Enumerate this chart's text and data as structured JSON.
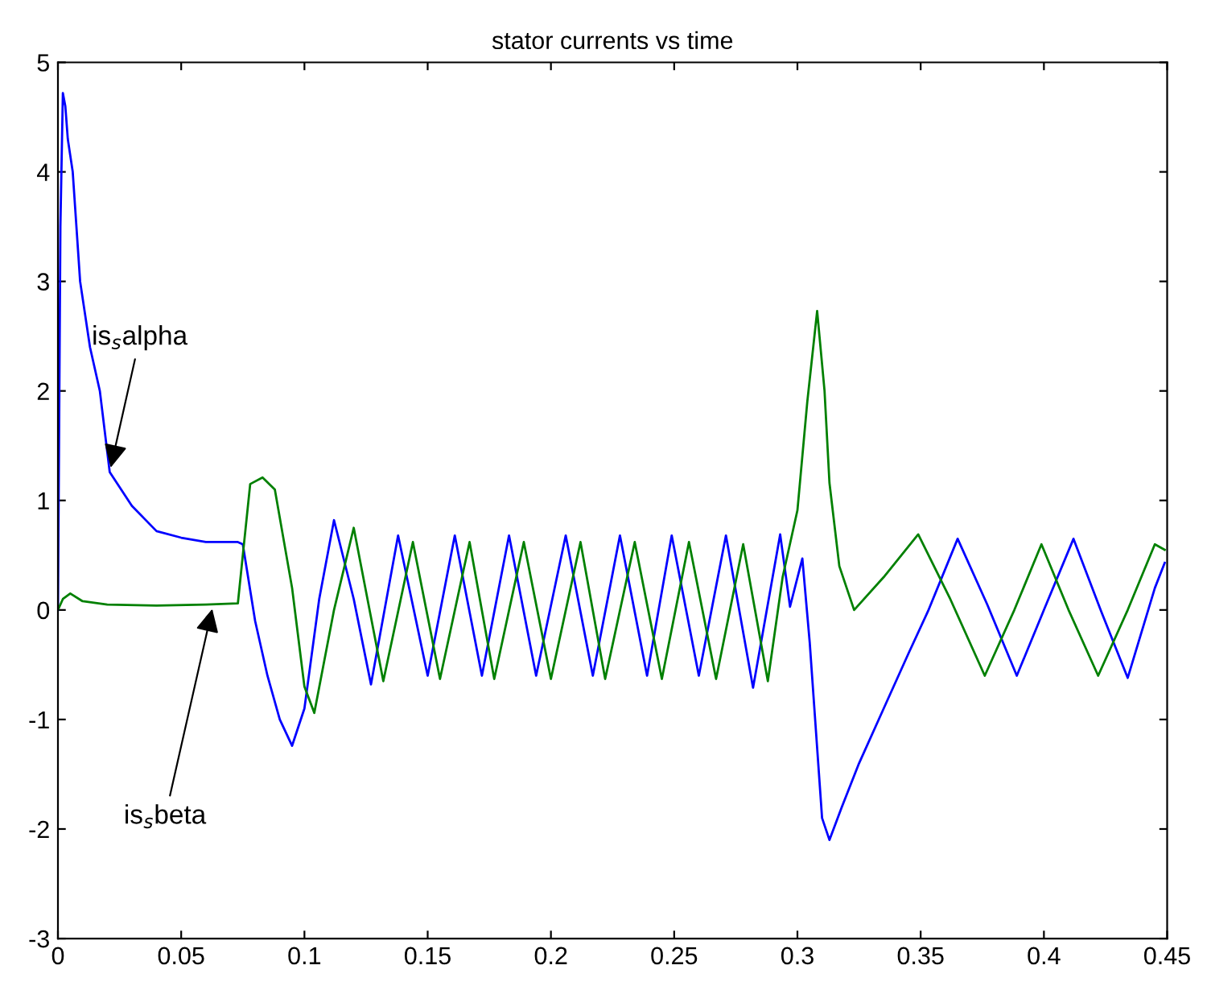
{
  "chart_data": {
    "type": "line",
    "title": "stator currents vs time",
    "xlim": [
      0,
      0.45
    ],
    "xticks": [
      0,
      0.05,
      0.1,
      0.15,
      0.2,
      0.25,
      0.3,
      0.35,
      0.4,
      0.45
    ],
    "ylim": [
      -3,
      5
    ],
    "yticks": [
      -3,
      -2,
      -1,
      0,
      1,
      2,
      3,
      4,
      5
    ],
    "grid": false,
    "series": [
      {
        "color": "#0000ff",
        "x": [
          0,
          0.0005,
          0.001,
          0.002,
          0.003,
          0.004,
          0.006,
          0.009,
          0.013,
          0.017,
          0.021,
          0.03,
          0.04,
          0.05,
          0.06,
          0.073,
          0.075,
          0.08,
          0.085,
          0.09,
          0.095,
          0.1,
          0.106,
          0.112,
          0.12,
          0.127,
          0.138,
          0.15,
          0.161,
          0.172,
          0.183,
          0.194,
          0.206,
          0.217,
          0.228,
          0.239,
          0.249,
          0.26,
          0.271,
          0.282,
          0.293,
          0.297,
          0.302,
          0.305,
          0.307,
          0.31,
          0.313,
          0.318,
          0.325,
          0.335,
          0.345,
          0.353,
          0.365,
          0.377,
          0.389,
          0.4,
          0.412,
          0.423,
          0.434,
          0.445,
          0.449
        ],
        "values": [
          0,
          1.7,
          3.5,
          4.72,
          4.6,
          4.3,
          4.0,
          3.0,
          2.4,
          2.0,
          1.26,
          0.95,
          0.72,
          0.66,
          0.62,
          0.62,
          0.6,
          -0.1,
          -0.6,
          -1.0,
          -1.24,
          -0.9,
          0.1,
          0.82,
          0.1,
          -0.68,
          0.68,
          -0.6,
          0.68,
          -0.6,
          0.68,
          -0.6,
          0.68,
          -0.6,
          0.68,
          -0.6,
          0.68,
          -0.6,
          0.68,
          -0.71,
          0.69,
          0.03,
          0.47,
          -0.3,
          -0.94,
          -1.9,
          -2.1,
          -1.8,
          -1.4,
          -0.9,
          -0.4,
          -0.01,
          0.65,
          0.05,
          -0.6,
          0.0,
          0.65,
          0.0,
          -0.62,
          0.2,
          0.43
        ]
      },
      {
        "color": "#008000",
        "x": [
          0,
          0.002,
          0.005,
          0.01,
          0.02,
          0.04,
          0.06,
          0.073,
          0.075,
          0.078,
          0.083,
          0.088,
          0.095,
          0.1,
          0.104,
          0.112,
          0.12,
          0.132,
          0.144,
          0.155,
          0.167,
          0.177,
          0.189,
          0.2,
          0.212,
          0.222,
          0.234,
          0.245,
          0.256,
          0.267,
          0.278,
          0.288,
          0.294,
          0.3,
          0.304,
          0.308,
          0.311,
          0.313,
          0.317,
          0.323,
          0.335,
          0.349,
          0.362,
          0.376,
          0.388,
          0.399,
          0.41,
          0.422,
          0.434,
          0.445,
          0.449
        ],
        "values": [
          0,
          0.1,
          0.15,
          0.08,
          0.05,
          0.04,
          0.05,
          0.06,
          0.5,
          1.15,
          1.21,
          1.1,
          0.2,
          -0.7,
          -0.94,
          0.0,
          0.75,
          -0.65,
          0.62,
          -0.63,
          0.62,
          -0.63,
          0.62,
          -0.63,
          0.62,
          -0.63,
          0.62,
          -0.63,
          0.62,
          -0.63,
          0.6,
          -0.65,
          0.3,
          0.91,
          1.9,
          2.73,
          2.0,
          1.16,
          0.4,
          0.0,
          0.3,
          0.69,
          0.1,
          -0.6,
          0.0,
          0.6,
          0.0,
          -0.6,
          0.0,
          0.6,
          0.55
        ]
      }
    ],
    "annotations": [
      {
        "text": "is$_{s}$alpha",
        "x": 0.021,
        "y": 1.26
      },
      {
        "text": "is$_{s}$beta",
        "x": 0.063,
        "y": 0.05
      }
    ]
  }
}
